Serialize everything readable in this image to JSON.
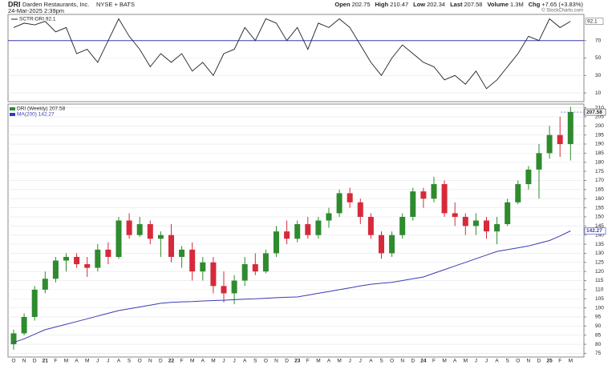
{
  "header": {
    "symbol": "DRI",
    "company": "Darden Restaurants, Inc.",
    "exchange": "NYSE + BATS",
    "timestamp": "24-Mar-2025 2:39pm",
    "quote": [
      {
        "label": "Open",
        "value": "202.75"
      },
      {
        "label": "High",
        "value": "210.47"
      },
      {
        "label": "Low",
        "value": "202.34"
      },
      {
        "label": "Last",
        "value": "207.58"
      },
      {
        "label": "Volume",
        "value": "1.3M"
      },
      {
        "label": "Chg",
        "value": "+7.65 (+3.83%)"
      }
    ],
    "attribution": "© StockCharts.com"
  },
  "chart_data": [
    {
      "type": "line",
      "ylim": [
        0,
        100
      ],
      "yticks": [
        10,
        30,
        50,
        70
      ],
      "reference_line": 70,
      "reference_color": "#3a3ab5",
      "series": [
        {
          "name": "SCTR-DRI 92.1",
          "color": "#222222",
          "values": [
            85,
            90,
            88,
            92,
            80,
            85,
            55,
            60,
            45,
            70,
            95,
            75,
            60,
            40,
            55,
            45,
            55,
            35,
            45,
            30,
            55,
            60,
            85,
            70,
            95,
            90,
            70,
            85,
            60,
            90,
            85,
            95,
            85,
            65,
            45,
            30,
            50,
            65,
            55,
            45,
            40,
            25,
            30,
            20,
            35,
            15,
            25,
            40,
            55,
            75,
            70,
            95,
            85,
            92.1
          ]
        }
      ]
    },
    {
      "type": "candlestick",
      "ylim": [
        73,
        212
      ],
      "yticks": [
        75,
        80,
        85,
        90,
        95,
        100,
        105,
        110,
        115,
        120,
        125,
        130,
        135,
        140,
        145,
        150,
        155,
        160,
        165,
        170,
        175,
        180,
        185,
        190,
        195,
        200,
        205,
        210
      ],
      "categories": [
        "O",
        "N",
        "D",
        "21",
        "F",
        "M",
        "A",
        "M",
        "J",
        "J",
        "A",
        "S",
        "O",
        "N",
        "D",
        "22",
        "F",
        "M",
        "A",
        "M",
        "J",
        "J",
        "A",
        "S",
        "O",
        "N",
        "D",
        "23",
        "F",
        "M",
        "A",
        "M",
        "J",
        "J",
        "A",
        "S",
        "O",
        "N",
        "D",
        "24",
        "F",
        "M",
        "A",
        "M",
        "J",
        "J",
        "A",
        "S",
        "O",
        "N",
        "D",
        "25",
        "F",
        "M"
      ],
      "series": [
        {
          "name": "DRI (Weekly) 207.58",
          "up_color": "#2e8b2e",
          "down_color": "#d62a3a",
          "open": [
            80,
            86,
            95,
            110,
            116,
            126,
            128,
            124,
            122,
            132,
            128,
            148,
            140,
            146,
            138,
            140,
            128,
            132,
            120,
            125,
            112,
            108,
            115,
            124,
            120,
            130,
            142,
            138,
            146,
            140,
            148,
            152,
            163,
            158,
            150,
            140,
            130,
            140,
            150,
            164,
            160,
            168,
            152,
            150,
            145,
            148,
            142,
            146,
            158,
            168,
            176,
            185,
            195,
            190
          ],
          "high": [
            88,
            97,
            112,
            120,
            128,
            130,
            130,
            128,
            135,
            136,
            150,
            152,
            150,
            148,
            142,
            146,
            134,
            136,
            128,
            128,
            120,
            118,
            128,
            130,
            132,
            145,
            148,
            148,
            150,
            150,
            155,
            165,
            166,
            160,
            152,
            142,
            142,
            152,
            166,
            166,
            172,
            170,
            158,
            152,
            152,
            150,
            150,
            160,
            170,
            178,
            190,
            200,
            205,
            210.47
          ],
          "low": [
            77,
            85,
            93,
            108,
            114,
            120,
            122,
            117,
            120,
            124,
            127,
            138,
            139,
            135,
            128,
            125,
            122,
            115,
            115,
            108,
            103,
            102,
            112,
            118,
            119,
            128,
            135,
            136,
            138,
            138,
            144,
            150,
            155,
            146,
            138,
            127,
            128,
            138,
            148,
            155,
            158,
            150,
            145,
            140,
            140,
            138,
            135,
            145,
            157,
            165,
            160,
            182,
            183,
            181
          ],
          "close": [
            86,
            95,
            110,
            116,
            126,
            128,
            124,
            122,
            132,
            128,
            148,
            140,
            146,
            138,
            140,
            128,
            132,
            120,
            125,
            112,
            108,
            115,
            124,
            120,
            130,
            142,
            138,
            146,
            140,
            148,
            152,
            163,
            158,
            150,
            140,
            130,
            140,
            150,
            164,
            160,
            168,
            152,
            150,
            145,
            148,
            142,
            146,
            158,
            168,
            176,
            185,
            195,
            190,
            207.58
          ]
        },
        {
          "name": "MA(200) 142.27",
          "color": "#3a3ab5",
          "values": [
            81,
            83,
            85.5,
            88,
            89.5,
            91,
            92.5,
            94,
            95.5,
            97,
            98.5,
            99.5,
            100.5,
            101.5,
            102.5,
            103,
            103.3,
            103.5,
            103.8,
            104,
            104.2,
            104.5,
            104.8,
            105,
            105.3,
            105.6,
            105.8,
            106,
            107,
            108,
            109,
            110,
            111,
            112,
            113,
            113.5,
            114,
            115,
            116,
            117,
            119,
            121,
            123,
            125,
            127,
            129,
            131,
            132,
            133,
            134,
            135.5,
            137,
            139.5,
            142.27
          ]
        }
      ]
    }
  ]
}
